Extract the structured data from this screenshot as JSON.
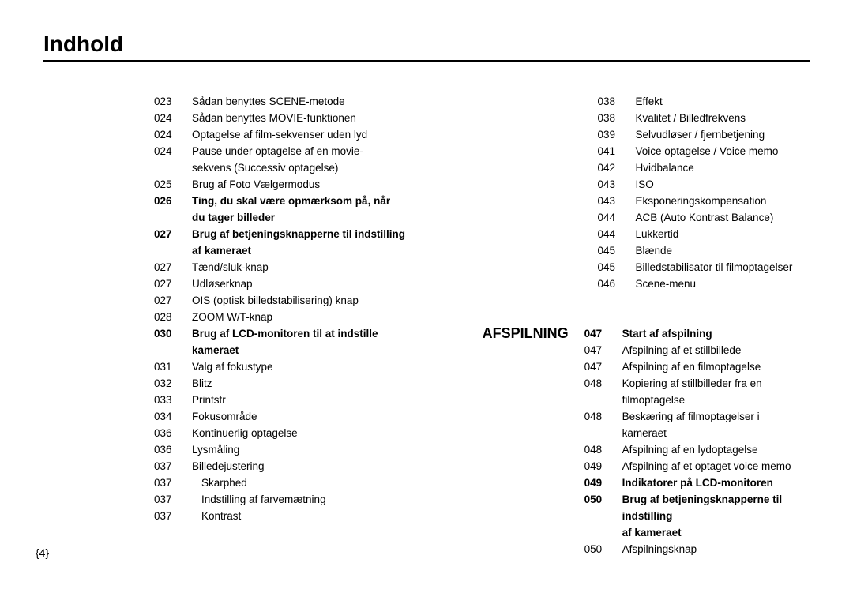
{
  "title": "Indhold",
  "pageNumber": "{4}",
  "sectionLabel": "AFSPILNING",
  "left": [
    {
      "n": "023",
      "t": "Sådan benyttes SCENE-metode"
    },
    {
      "n": "024",
      "t": "Sådan benyttes MOVIE-funktionen"
    },
    {
      "n": "024",
      "t": "Optagelse af film-sekvenser uden lyd"
    },
    {
      "n": "024",
      "t": "Pause under optagelse af en movie-"
    },
    {
      "n": "",
      "t": "sekvens (Successiv optagelse)"
    },
    {
      "n": "025",
      "t": "Brug af Foto Vælgermodus"
    },
    {
      "n": "026",
      "t": "Ting, du skal være opmærksom på, når",
      "b": true
    },
    {
      "n": "",
      "t": "du tager billeder",
      "b": true
    },
    {
      "n": "027",
      "t": "Brug af betjeningsknapperne til indstilling",
      "b": true
    },
    {
      "n": "",
      "t": "af kameraet",
      "b": true
    },
    {
      "n": "027",
      "t": "Tænd/sluk-knap"
    },
    {
      "n": "027",
      "t": "Udløserknap"
    },
    {
      "n": "027",
      "t": "OIS (optisk billedstabilisering) knap"
    },
    {
      "n": "028",
      "t": "ZOOM W/T-knap"
    },
    {
      "n": "030",
      "t": "Brug af LCD-monitoren til at indstille",
      "b": true
    },
    {
      "n": "",
      "t": "kameraet",
      "b": true
    },
    {
      "n": "031",
      "t": "Valg af fokustype"
    },
    {
      "n": "032",
      "t": "Blitz"
    },
    {
      "n": "033",
      "t": "Printstr"
    },
    {
      "n": "034",
      "t": "Fokusområde"
    },
    {
      "n": "036",
      "t": "Kontinuerlig optagelse"
    },
    {
      "n": "036",
      "t": "Lysmåling"
    },
    {
      "n": "037",
      "t": "Billedejustering"
    },
    {
      "n": "037",
      "t": "Skarphed",
      "sub": true
    },
    {
      "n": "037",
      "t": "Indstilling af farvemætning",
      "sub": true
    },
    {
      "n": "037",
      "t": "Kontrast",
      "sub": true
    }
  ],
  "rightTop": [
    {
      "n": "038",
      "t": "Effekt"
    },
    {
      "n": "038",
      "t": "Kvalitet / Billedfrekvens"
    },
    {
      "n": "039",
      "t": "Selvudløser / fjernbetjening"
    },
    {
      "n": "041",
      "t": "Voice optagelse / Voice memo"
    },
    {
      "n": "042",
      "t": "Hvidbalance"
    },
    {
      "n": "043",
      "t": "ISO"
    },
    {
      "n": "043",
      "t": "Eksponeringskompensation"
    },
    {
      "n": "044",
      "t": "ACB (Auto Kontrast Balance)"
    },
    {
      "n": "044",
      "t": "Lukkertid"
    },
    {
      "n": "045",
      "t": "Blænde"
    },
    {
      "n": "045",
      "t": "Billedstabilisator til filmoptagelser"
    },
    {
      "n": "046",
      "t": "Scene-menu"
    }
  ],
  "rightBottom": [
    {
      "n": "047",
      "t": "Start af afspilning",
      "b": true
    },
    {
      "n": "047",
      "t": "Afspilning af et stillbillede"
    },
    {
      "n": "047",
      "t": "Afspilning af en filmoptagelse"
    },
    {
      "n": "048",
      "t": "Kopiering af stillbilleder fra en"
    },
    {
      "n": "",
      "t": "filmoptagelse"
    },
    {
      "n": "048",
      "t": "Beskæring af filmoptagelser i kameraet"
    },
    {
      "n": "048",
      "t": "Afspilning af en lydoptagelse"
    },
    {
      "n": "049",
      "t": "Afspilning af et optaget voice memo"
    },
    {
      "n": "049",
      "t": "Indikatorer på LCD-monitoren",
      "b": true
    },
    {
      "n": "050",
      "t": "Brug af betjeningsknapperne til indstilling",
      "b": true
    },
    {
      "n": "",
      "t": "af kameraet",
      "b": true
    },
    {
      "n": "050",
      "t": "Afspilningsknap"
    }
  ]
}
